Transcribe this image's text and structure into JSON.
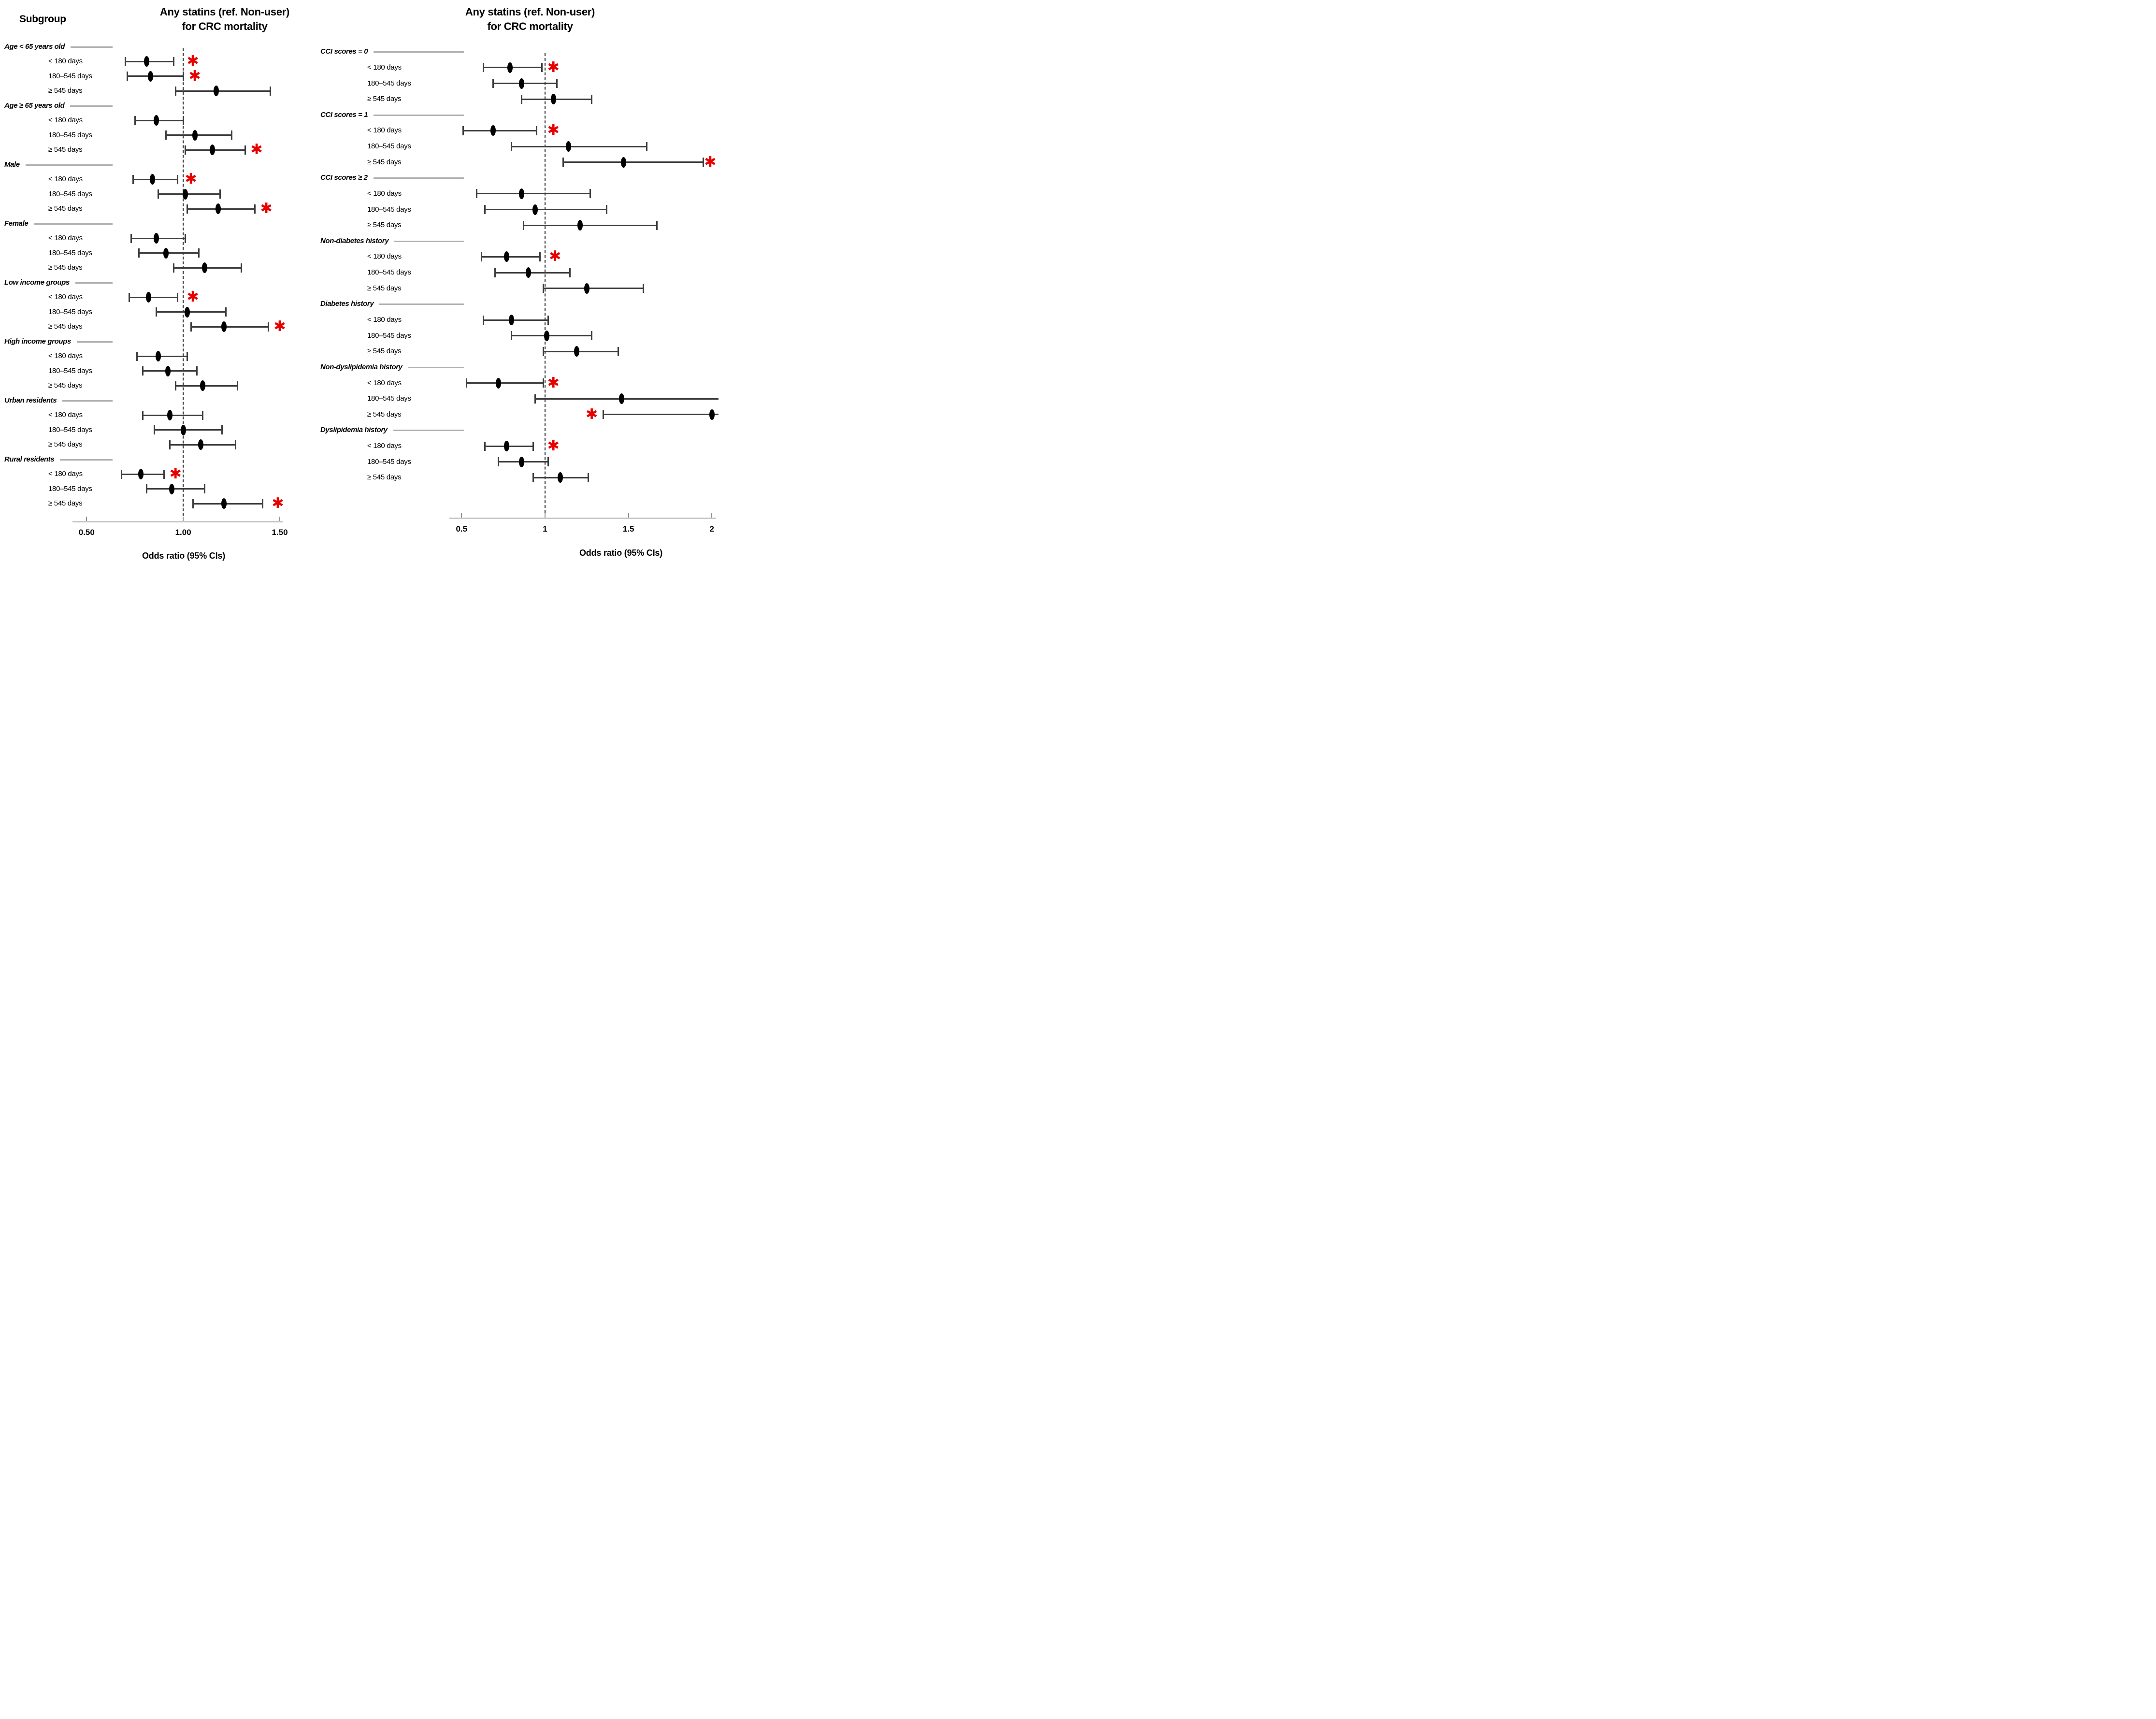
{
  "page": {
    "subgroup_header": "Subgroup"
  },
  "style": {
    "significant_color": "#e60000",
    "marker_color": "#000000",
    "ci_color": "#3d3d3d",
    "axis_color": "#c6c6c6",
    "rule_color": "#b0b0b0",
    "ref_line_color": "#1a1a1a",
    "text_color": "#000000",
    "significance_glyph": "✱"
  },
  "chart_data": [
    {
      "type": "forest",
      "panel": "left",
      "title_line1": "Any statins (ref. Non-user)",
      "title_line2": "for CRC mortality",
      "xlabel": "Odds ratio (95% CIs)",
      "ref_value": 1.0,
      "xlim": [
        0.43,
        1.62
      ],
      "x_ticks": [
        {
          "value": 0.5,
          "label": "0.50"
        },
        {
          "value": 1.0,
          "label": "1.00"
        },
        {
          "value": 1.5,
          "label": "1.50"
        }
      ],
      "groups": [
        {
          "label": "Age < 65 years old",
          "items": [
            {
              "label": "< 180 days",
              "or": 0.81,
              "lo": 0.7,
              "hi": 0.95,
              "significant": true,
              "sig_x": 1.05
            },
            {
              "label": "180–545 days",
              "or": 0.83,
              "lo": 0.71,
              "hi": 1.0,
              "significant": true,
              "sig_x": 1.06
            },
            {
              "label": "≥ 545 days",
              "or": 1.17,
              "lo": 0.96,
              "hi": 1.45,
              "significant": false
            }
          ]
        },
        {
          "label": "Age ≥ 65 years old",
          "items": [
            {
              "label": "< 180 days",
              "or": 0.86,
              "lo": 0.75,
              "hi": 1.0,
              "significant": false
            },
            {
              "label": "180–545 days",
              "or": 1.06,
              "lo": 0.91,
              "hi": 1.25,
              "significant": false
            },
            {
              "label": "≥ 545 days",
              "or": 1.15,
              "lo": 1.01,
              "hi": 1.32,
              "significant": true,
              "sig_x": 1.38
            }
          ]
        },
        {
          "label": "Male",
          "items": [
            {
              "label": "< 180 days",
              "or": 0.84,
              "lo": 0.74,
              "hi": 0.97,
              "significant": true,
              "sig_x": 1.04
            },
            {
              "label": "180–545 days",
              "or": 1.01,
              "lo": 0.87,
              "hi": 1.19,
              "significant": false
            },
            {
              "label": "≥ 545 days",
              "or": 1.18,
              "lo": 1.02,
              "hi": 1.37,
              "significant": true,
              "sig_x": 1.43
            }
          ]
        },
        {
          "label": "Female",
          "items": [
            {
              "label": "< 180 days",
              "or": 0.86,
              "lo": 0.73,
              "hi": 1.01,
              "significant": false
            },
            {
              "label": "180–545 days",
              "or": 0.91,
              "lo": 0.77,
              "hi": 1.08,
              "significant": false
            },
            {
              "label": "≥ 545 days",
              "or": 1.11,
              "lo": 0.95,
              "hi": 1.3,
              "significant": false
            }
          ]
        },
        {
          "label": "Low income groups",
          "items": [
            {
              "label": "< 180 days",
              "or": 0.82,
              "lo": 0.72,
              "hi": 0.97,
              "significant": true,
              "sig_x": 1.05
            },
            {
              "label": "180–545 days",
              "or": 1.02,
              "lo": 0.86,
              "hi": 1.22,
              "significant": false
            },
            {
              "label": "≥ 545 days",
              "or": 1.21,
              "lo": 1.04,
              "hi": 1.44,
              "significant": true,
              "sig_x": 1.5
            }
          ]
        },
        {
          "label": "High income groups",
          "items": [
            {
              "label": "< 180 days",
              "or": 0.87,
              "lo": 0.76,
              "hi": 1.02,
              "significant": false
            },
            {
              "label": "180–545 days",
              "or": 0.92,
              "lo": 0.79,
              "hi": 1.07,
              "significant": false
            },
            {
              "label": "≥ 545 days",
              "or": 1.1,
              "lo": 0.96,
              "hi": 1.28,
              "significant": false
            }
          ]
        },
        {
          "label": "Urban residents",
          "items": [
            {
              "label": "< 180 days",
              "or": 0.93,
              "lo": 0.79,
              "hi": 1.1,
              "significant": false
            },
            {
              "label": "180–545 days",
              "or": 1.0,
              "lo": 0.85,
              "hi": 1.2,
              "significant": false
            },
            {
              "label": "≥ 545 days",
              "or": 1.09,
              "lo": 0.93,
              "hi": 1.27,
              "significant": false
            }
          ]
        },
        {
          "label": "Rural residents",
          "items": [
            {
              "label": "< 180 days",
              "or": 0.78,
              "lo": 0.68,
              "hi": 0.9,
              "significant": true,
              "sig_x": 0.96
            },
            {
              "label": "180–545 days",
              "or": 0.94,
              "lo": 0.81,
              "hi": 1.11,
              "significant": false
            },
            {
              "label": "≥ 545 days",
              "or": 1.21,
              "lo": 1.05,
              "hi": 1.41,
              "significant": true,
              "sig_x": 1.49
            }
          ]
        }
      ]
    },
    {
      "type": "forest",
      "panel": "right",
      "title_line1": "Any statins (ref. Non-user)",
      "title_line2": "for CRC mortality",
      "xlabel": "Odds ratio (95% CIs)",
      "ref_value": 1.0,
      "xlim": [
        0.45,
        2.05
      ],
      "x_ticks": [
        {
          "value": 0.5,
          "label": "0.5"
        },
        {
          "value": 1.0,
          "label": "1"
        },
        {
          "value": 1.5,
          "label": "1.5"
        },
        {
          "value": 2.0,
          "label": "2"
        }
      ],
      "groups": [
        {
          "label": "CCI scores = 0",
          "items": [
            {
              "label": "< 180 days",
              "or": 0.79,
              "lo": 0.63,
              "hi": 0.98,
              "significant": true,
              "sig_x": 1.05
            },
            {
              "label": "180–545 days",
              "or": 0.86,
              "lo": 0.69,
              "hi": 1.07,
              "significant": false
            },
            {
              "label": "≥ 545 days",
              "or": 1.05,
              "lo": 0.86,
              "hi": 1.28,
              "significant": false
            }
          ]
        },
        {
          "label": "CCI scores = 1",
          "items": [
            {
              "label": "< 180 days",
              "or": 0.69,
              "lo": 0.51,
              "hi": 0.95,
              "significant": true,
              "sig_x": 1.05
            },
            {
              "label": "180–545 days",
              "or": 1.14,
              "lo": 0.8,
              "hi": 1.61,
              "significant": false
            },
            {
              "label": "≥ 545 days",
              "or": 1.47,
              "lo": 1.11,
              "hi": 1.95,
              "significant": true,
              "sig_x": 1.99
            }
          ]
        },
        {
          "label": "CCI scores ≥ 2",
          "items": [
            {
              "label": "< 180 days",
              "or": 0.86,
              "lo": 0.59,
              "hi": 1.27,
              "significant": false
            },
            {
              "label": "180–545 days",
              "or": 0.94,
              "lo": 0.64,
              "hi": 1.37,
              "significant": false
            },
            {
              "label": "≥ 545 days",
              "or": 1.21,
              "lo": 0.87,
              "hi": 1.67,
              "significant": false
            }
          ]
        },
        {
          "label": "Non-diabetes history",
          "items": [
            {
              "label": "< 180 days",
              "or": 0.77,
              "lo": 0.62,
              "hi": 0.97,
              "significant": true,
              "sig_x": 1.06
            },
            {
              "label": "180–545 days",
              "or": 0.9,
              "lo": 0.7,
              "hi": 1.15,
              "significant": false
            },
            {
              "label": "≥ 545 days",
              "or": 1.25,
              "lo": 0.99,
              "hi": 1.59,
              "significant": false
            }
          ]
        },
        {
          "label": "Diabetes history",
          "items": [
            {
              "label": "< 180 days",
              "or": 0.8,
              "lo": 0.63,
              "hi": 1.02,
              "significant": false
            },
            {
              "label": "180–545 days",
              "or": 1.01,
              "lo": 0.8,
              "hi": 1.28,
              "significant": false
            },
            {
              "label": "≥ 545 days",
              "or": 1.19,
              "lo": 0.99,
              "hi": 1.44,
              "significant": false
            }
          ]
        },
        {
          "label": "Non-dyslipidemia history",
          "items": [
            {
              "label": "< 180 days",
              "or": 0.72,
              "lo": 0.53,
              "hi": 0.99,
              "significant": true,
              "sig_x": 1.05
            },
            {
              "label": "180–545 days",
              "or": 1.46,
              "lo": 0.94,
              "hi": 2.04,
              "significant": false,
              "clip_hi": true
            },
            {
              "label": "≥ 545 days",
              "or": 2.0,
              "lo": 1.35,
              "hi": 2.04,
              "significant": true,
              "sig_x": 1.28,
              "clip_hi": true
            }
          ]
        },
        {
          "label": "Dyslipidemia history",
          "items": [
            {
              "label": "< 180 days",
              "or": 0.77,
              "lo": 0.64,
              "hi": 0.93,
              "significant": true,
              "sig_x": 1.05
            },
            {
              "label": "180–545 days",
              "or": 0.86,
              "lo": 0.72,
              "hi": 1.02,
              "significant": false
            },
            {
              "label": "≥ 545 days",
              "or": 1.09,
              "lo": 0.93,
              "hi": 1.26,
              "significant": false
            }
          ]
        }
      ]
    }
  ]
}
